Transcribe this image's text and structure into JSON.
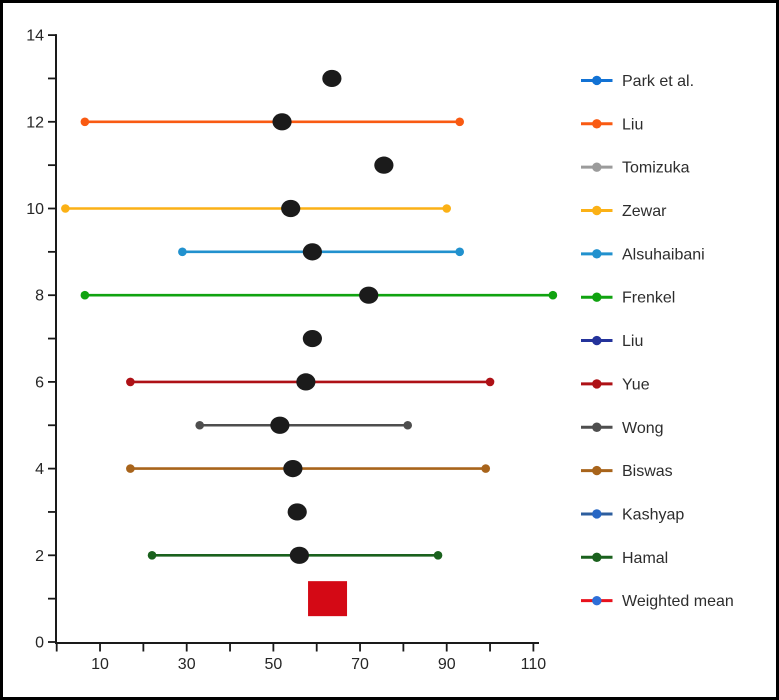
{
  "window": {
    "background": "#ffffff",
    "frame_border_color": "#000000"
  },
  "chart_data": {
    "type": "scatter",
    "subtype": "forest-plot-horizontal-ci",
    "title": "",
    "xlabel": "",
    "ylabel": "",
    "xlim": [
      0,
      112
    ],
    "ylim": [
      0,
      14
    ],
    "x_tick_labels": [
      10,
      30,
      50,
      70,
      90,
      110
    ],
    "x_minor_tick_step": 10,
    "y_tick_labels": [
      0,
      2,
      4,
      6,
      8,
      10,
      12,
      14
    ],
    "y_minor_tick_step": 1,
    "grid": false,
    "legend_position": "right",
    "axis_color": "#1a1a1a",
    "tick_label_color": "#262626",
    "legend_text_color": "#2d2d2d",
    "series": [
      {
        "name": "Park et al.",
        "y": 13,
        "value": 63.5,
        "ci_low": null,
        "ci_high": null,
        "marker": "circle",
        "marker_color": "#1b1b1b",
        "color": "#1272d4"
      },
      {
        "name": "Liu",
        "y": 12,
        "value": 52,
        "ci_low": 6.5,
        "ci_high": 93,
        "marker": "circle",
        "marker_color": "#1b1b1b",
        "color": "#f95a12"
      },
      {
        "name": "Tomizuka",
        "y": 11,
        "value": 75.5,
        "ci_low": null,
        "ci_high": null,
        "marker": "circle",
        "marker_color": "#1b1b1b",
        "color": "#9b9b9b"
      },
      {
        "name": "Zewar",
        "y": 10,
        "value": 54,
        "ci_low": 2,
        "ci_high": 90,
        "marker": "circle",
        "marker_color": "#1b1b1b",
        "color": "#fbb116"
      },
      {
        "name": "Alsuhaibani",
        "y": 9,
        "value": 59,
        "ci_low": 29,
        "ci_high": 93,
        "marker": "circle",
        "marker_color": "#1b1b1b",
        "color": "#2191ce"
      },
      {
        "name": "Frenkel",
        "y": 8,
        "value": 72,
        "ci_low": 6.5,
        "ci_high": 114.5,
        "marker": "circle",
        "marker_color": "#1b1b1b",
        "color": "#10a310"
      },
      {
        "name": "Liu",
        "y": 7,
        "value": 59,
        "ci_low": null,
        "ci_high": null,
        "marker": "circle",
        "marker_color": "#1b1b1b",
        "color": "#24339b"
      },
      {
        "name": "Yue",
        "y": 6,
        "value": 57.5,
        "ci_low": 17,
        "ci_high": 100,
        "marker": "circle",
        "marker_color": "#1b1b1b",
        "color": "#ae1116"
      },
      {
        "name": "Wong",
        "y": 5,
        "value": 51.5,
        "ci_low": 33,
        "ci_high": 81,
        "marker": "circle",
        "marker_color": "#1b1b1b",
        "color": "#4e4e4e"
      },
      {
        "name": "Biswas",
        "y": 4,
        "value": 54.5,
        "ci_low": 17,
        "ci_high": 99,
        "marker": "circle",
        "marker_color": "#1b1b1b",
        "color": "#a8641b"
      },
      {
        "name": "Kashyap",
        "y": 3,
        "value": 55.5,
        "ci_low": null,
        "ci_high": null,
        "marker": "circle",
        "marker_color": "#1b1b1b",
        "color": "#2d5e9e",
        "legend_dot_color": "#2767c4"
      },
      {
        "name": "Hamal",
        "y": 2,
        "value": 56,
        "ci_low": 22,
        "ci_high": 88,
        "marker": "circle",
        "marker_color": "#1b1b1b",
        "color": "#1a611d"
      },
      {
        "name": "Weighted mean",
        "y": 1,
        "value": 62.5,
        "ci_low": null,
        "ci_high": null,
        "marker": "square",
        "marker_color": "#d40915",
        "color": "#e8111c",
        "legend_dot_color": "#2e6fd8"
      }
    ]
  }
}
